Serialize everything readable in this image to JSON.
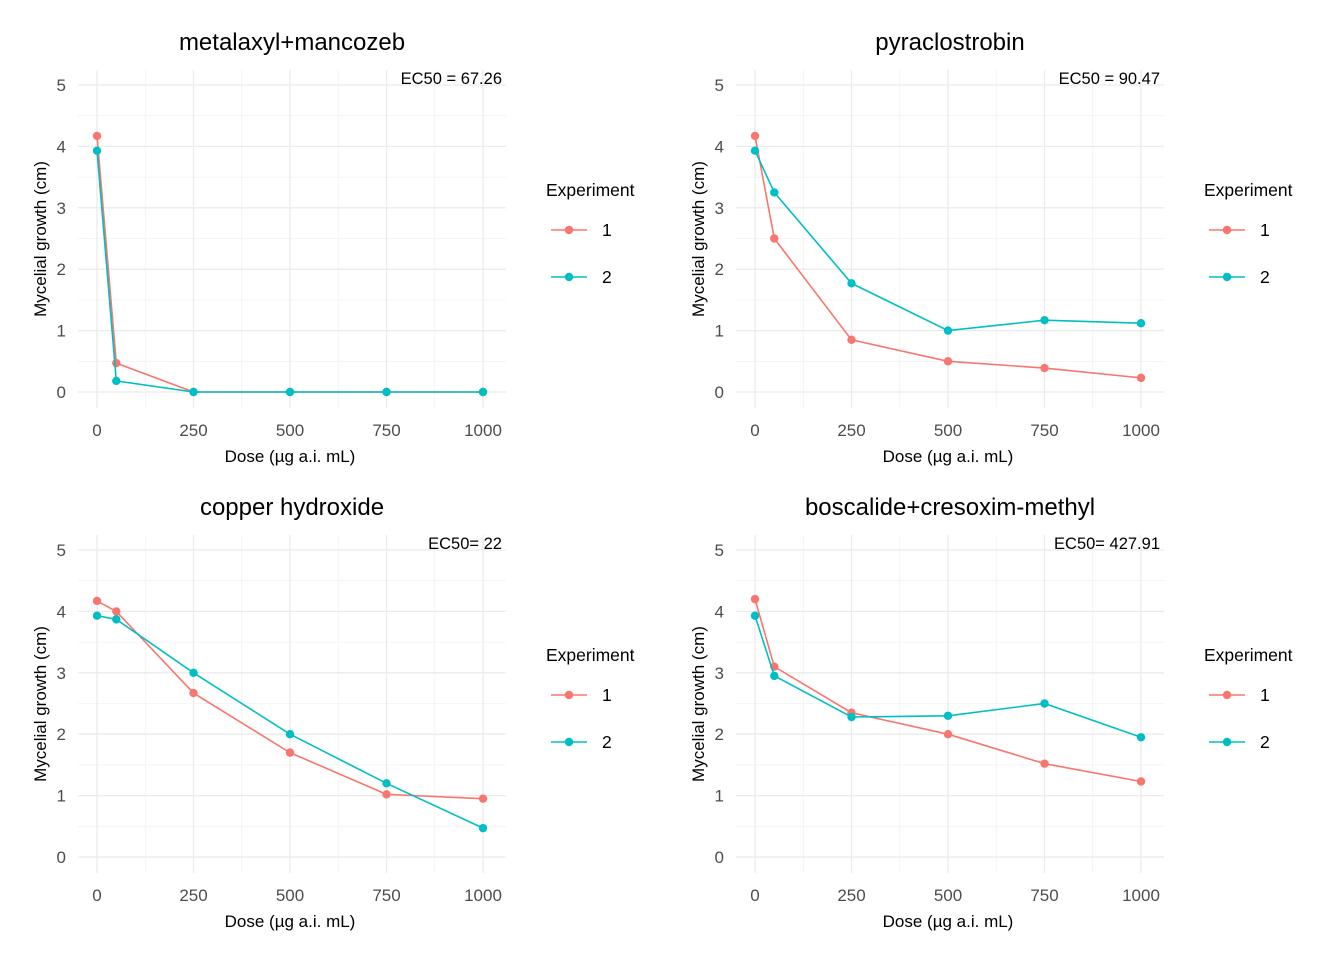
{
  "colors": {
    "series1": "#F8766D",
    "series2": "#00BFC4",
    "grid_major": "#EBEBEB",
    "grid_minor": "#F2F2F2"
  },
  "chart_data": [
    {
      "type": "line",
      "title": "metalaxyl+mancozeb",
      "annotation": "EC50 = 67.26",
      "xlabel": "Dose (µg a.i. mL)",
      "ylabel": "Mycelial growth (cm)",
      "xlim": [
        0,
        1000
      ],
      "ylim": [
        0,
        5
      ],
      "xticks": [
        0,
        250,
        500,
        750,
        1000
      ],
      "yticks": [
        0,
        1,
        2,
        3,
        4,
        5
      ],
      "grid": true,
      "legend": {
        "title": "Experiment",
        "position": "right"
      },
      "series": [
        {
          "name": "1",
          "x": [
            0,
            50,
            250,
            500,
            750,
            1000
          ],
          "y": [
            4.17,
            0.47,
            0,
            0,
            0,
            0
          ]
        },
        {
          "name": "2",
          "x": [
            0,
            50,
            250,
            500,
            750,
            1000
          ],
          "y": [
            3.93,
            0.18,
            0,
            0,
            0,
            0
          ]
        }
      ]
    },
    {
      "type": "line",
      "title": "pyraclostrobin",
      "annotation": "EC50 = 90.47",
      "xlabel": "Dose (µg a.i. mL)",
      "ylabel": "Mycelial growth (cm)",
      "xlim": [
        0,
        1000
      ],
      "ylim": [
        0,
        5
      ],
      "xticks": [
        0,
        250,
        500,
        750,
        1000
      ],
      "yticks": [
        0,
        1,
        2,
        3,
        4,
        5
      ],
      "grid": true,
      "legend": {
        "title": "Experiment",
        "position": "right"
      },
      "series": [
        {
          "name": "1",
          "x": [
            0,
            50,
            250,
            500,
            750,
            1000
          ],
          "y": [
            4.17,
            2.5,
            0.85,
            0.5,
            0.39,
            0.23
          ]
        },
        {
          "name": "2",
          "x": [
            0,
            50,
            250,
            500,
            750,
            1000
          ],
          "y": [
            3.93,
            3.25,
            1.77,
            1.0,
            1.17,
            1.12
          ]
        }
      ]
    },
    {
      "type": "line",
      "title": "copper hydroxide",
      "annotation": "EC50= 22",
      "xlabel": "Dose (µg a.i. mL)",
      "ylabel": "Mycelial growth (cm)",
      "xlim": [
        0,
        1000
      ],
      "ylim": [
        0,
        5
      ],
      "xticks": [
        0,
        250,
        500,
        750,
        1000
      ],
      "yticks": [
        0,
        1,
        2,
        3,
        4,
        5
      ],
      "grid": true,
      "legend": {
        "title": "Experiment",
        "position": "right"
      },
      "series": [
        {
          "name": "1",
          "x": [
            0,
            50,
            250,
            500,
            750,
            1000
          ],
          "y": [
            4.17,
            4.0,
            2.67,
            1.7,
            1.02,
            0.95
          ]
        },
        {
          "name": "2",
          "x": [
            0,
            50,
            250,
            500,
            750,
            1000
          ],
          "y": [
            3.93,
            3.87,
            3.0,
            2.0,
            1.2,
            0.47
          ]
        }
      ]
    },
    {
      "type": "line",
      "title": "boscalide+cresoxim-methyl",
      "annotation": "EC50= 427.91",
      "xlabel": "Dose (µg a.i. mL)",
      "ylabel": "Mycelial growth (cm)",
      "xlim": [
        0,
        1000
      ],
      "ylim": [
        0,
        5
      ],
      "xticks": [
        0,
        250,
        500,
        750,
        1000
      ],
      "yticks": [
        0,
        1,
        2,
        3,
        4,
        5
      ],
      "grid": true,
      "legend": {
        "title": "Experiment",
        "position": "right"
      },
      "series": [
        {
          "name": "1",
          "x": [
            0,
            50,
            250,
            500,
            750,
            1000
          ],
          "y": [
            4.2,
            3.1,
            2.35,
            2.0,
            1.52,
            1.23
          ]
        },
        {
          "name": "2",
          "x": [
            0,
            50,
            250,
            500,
            750,
            1000
          ],
          "y": [
            3.93,
            2.95,
            2.28,
            2.3,
            2.5,
            1.95
          ]
        }
      ]
    }
  ]
}
